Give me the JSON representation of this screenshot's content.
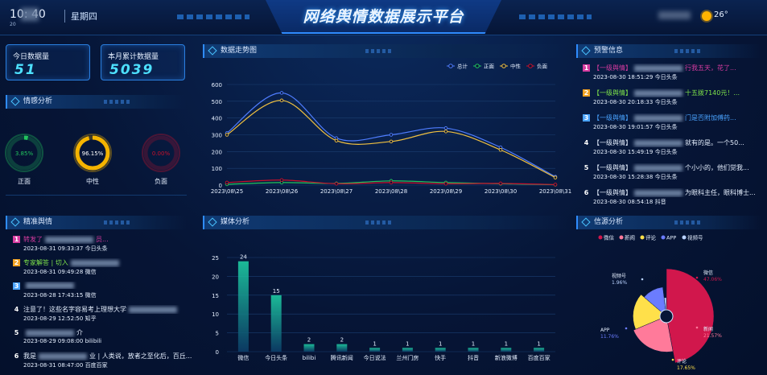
{
  "header": {
    "time": "10:  40",
    "date_small": "20",
    "weekday": "星期四",
    "title": "网络舆情数据展示平台",
    "temperature": "26°"
  },
  "stats": {
    "today_label": "今日数据量",
    "today_value": "51",
    "month_label": "本月累计数据量",
    "month_value": "5039"
  },
  "sentiment": {
    "title": "情感分析",
    "items": [
      {
        "label": "正面",
        "percent": "3.85%",
        "fraction": 0.0385,
        "color": "#22c55e",
        "icon": "ring-gauge-icon"
      },
      {
        "label": "中性",
        "percent": "96.15%",
        "fraction": 0.9615,
        "color": "#f5b400",
        "icon": "ring-gauge-icon"
      },
      {
        "label": "负面",
        "percent": "0.00%",
        "fraction": 0.0,
        "color": "#c9102b",
        "icon": "ring-gauge-icon"
      }
    ]
  },
  "trend": {
    "title": "数据走势图"
  },
  "warning": {
    "title": "预警信息",
    "items": [
      {
        "rank": "1",
        "rank_color": "#d63ba0",
        "text_a": "【一级舆情】",
        "text_b": "行我五天，花了...",
        "meta": "2023-08-30 18:51:29 今日头条",
        "color": "#d63ba0"
      },
      {
        "rank": "2",
        "rank_color": "#f0a020",
        "text_a": "【一级舆情】",
        "text_b": "十五拨7140元！...",
        "meta": "2023-08-30 20:18:33 今日头条",
        "color": "#7ee34a"
      },
      {
        "rank": "3",
        "rank_color": "#4aa3ff",
        "text_a": "【一级舆情】",
        "text_b": "门是否附加傅药...",
        "meta": "2023-08-30 19:01:57 今日头条",
        "color": "#4aa3ff"
      },
      {
        "rank": "4",
        "rank_color": "transparent",
        "text_a": "【一级舆情】",
        "text_b": "就有的是。一个50...",
        "meta": "2023-08-30 15:49:19 今日头条",
        "color": "#e6f0ff"
      },
      {
        "rank": "5",
        "rank_color": "transparent",
        "text_a": "【一级舆情】",
        "text_b": "个小小的，他们觉我...",
        "meta": "2023-08-30 15:28:38 今日头条",
        "color": "#e6f0ff"
      },
      {
        "rank": "6",
        "rank_color": "transparent",
        "text_a": "【一级舆情】",
        "text_b": "为眼科主任，眼科博士...",
        "meta": "2023-08-30 08:54:18 抖音",
        "color": "#e6f0ff"
      }
    ]
  },
  "precise": {
    "title": "精准舆情",
    "items": [
      {
        "rank": "1",
        "rank_color": "#d63ba0",
        "text_a": "转发了",
        "text_b": "员...",
        "meta": "2023-08-31 09:33:37 今日头条",
        "color": "#d63ba0"
      },
      {
        "rank": "2",
        "rank_color": "#f0a020",
        "text_a": "专家解答 | 切入",
        "text_b": "",
        "meta": "2023-08-31 09:49:28 微信",
        "color": "#7ee34a"
      },
      {
        "rank": "3",
        "rank_color": "#4aa3ff",
        "text_a": "",
        "text_b": "",
        "meta": "2023-08-28 17:43:15 微信",
        "color": "#4aa3ff"
      },
      {
        "rank": "4",
        "rank_color": "transparent",
        "text_a": "注意了！这些名字容易考上理想大学",
        "text_b": "",
        "meta": "2023-08-29 12:52:50 知乎",
        "color": "#e6f0ff"
      },
      {
        "rank": "5",
        "rank_color": "transparent",
        "text_a": "",
        "text_b": "介",
        "meta": "2023-08-29 09:08:00 bilibili",
        "color": "#e6f0ff"
      },
      {
        "rank": "6",
        "rank_color": "transparent",
        "text_a": "我是",
        "text_b": "业 | 人类说，放者之至化后，百丘...",
        "meta": "2023-08-31 08:47:00 百度百家",
        "color": "#e6f0ff"
      }
    ]
  },
  "media": {
    "title": "媒体分析"
  },
  "source": {
    "title": "信源分析"
  },
  "chart_data": [
    {
      "type": "line",
      "x": [
        "2023\\08\\25",
        "2023\\08\\26",
        "2023\\08\\27",
        "2023\\08\\28",
        "2023\\08\\29",
        "2023\\08\\30",
        "2023\\08\\31"
      ],
      "ylim": [
        0,
        600
      ],
      "yticks": [
        0,
        100,
        200,
        300,
        400,
        500,
        600
      ],
      "legend_position": "top-right",
      "series": [
        {
          "name": "总计",
          "color": "#4f7dff",
          "values": [
            310,
            550,
            280,
            300,
            340,
            225,
            50
          ]
        },
        {
          "name": "正面",
          "color": "#22c55e",
          "values": [
            5,
            15,
            10,
            25,
            15,
            8,
            2
          ]
        },
        {
          "name": "中性",
          "color": "#f0c040",
          "values": [
            300,
            505,
            265,
            260,
            320,
            210,
            45
          ]
        },
        {
          "name": "负面",
          "color": "#c9102b",
          "values": [
            15,
            30,
            8,
            15,
            8,
            10,
            3
          ]
        }
      ]
    },
    {
      "type": "bar",
      "categories": [
        "微信",
        "今日头条",
        "bilibi",
        "腾讯新闻",
        "今日说法",
        "兰州门房",
        "快手",
        "抖音",
        "新浪微博",
        "百度百家"
      ],
      "values": [
        24,
        15,
        2,
        2,
        1,
        1,
        1,
        1,
        1,
        1
      ],
      "ylim": [
        0,
        25
      ],
      "yticks": [
        0,
        5,
        10,
        15,
        20,
        25
      ]
    },
    {
      "type": "pie",
      "legend_position": "top",
      "labels": [
        "微信",
        "新闻",
        "评论",
        "APP",
        "视频号"
      ],
      "values": [
        47.06,
        21.57,
        17.65,
        11.76,
        1.96
      ],
      "value_labels": [
        "47.06%",
        "21.57%",
        "17.65%",
        "11.76%",
        "1.96%"
      ],
      "colors": [
        "#d1174c",
        "#ff7a9a",
        "#ffe04a",
        "#6b7cff",
        "#b9d2ff"
      ]
    }
  ]
}
